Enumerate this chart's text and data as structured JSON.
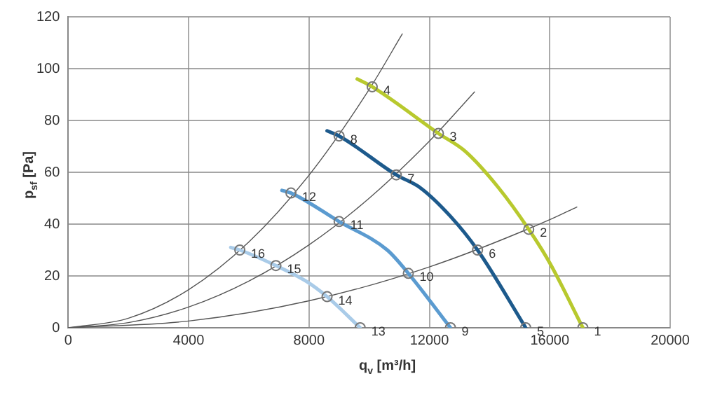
{
  "chart_data": {
    "type": "line",
    "xlabel": "q$_{v}$ [m³/h]",
    "ylabel": "p$_{sf}$ [Pa]",
    "xlim": [
      0,
      20000
    ],
    "xticks": [
      0,
      4000,
      8000,
      12000,
      16000,
      20000
    ],
    "ylim": [
      0,
      120
    ],
    "yticks": [
      0,
      20,
      40,
      60,
      80,
      100,
      120
    ],
    "grid": true,
    "legend": false,
    "marker": "none",
    "line_style": "solid",
    "series": [
      {
        "color": "#555555",
        "x": [
          0,
          2000,
          4000,
          6000,
          8000,
          10000,
          11100
        ],
        "values": [
          0,
          3.7,
          14.7,
          33.1,
          58.9,
          92,
          113.4
        ]
      },
      {
        "color": "#555555",
        "x": [
          0,
          2000,
          4000,
          6000,
          8000,
          10000,
          12000,
          13500
        ],
        "values": [
          0,
          2,
          8,
          18,
          32,
          50,
          72,
          91
        ]
      },
      {
        "color": "#555555",
        "x": [
          0,
          4000,
          8000,
          12000,
          16000,
          16900
        ],
        "values": [
          0,
          2.6,
          10.4,
          23.5,
          41.7,
          46.6
        ]
      },
      {
        "color": "#b8c92e",
        "x": [
          9600,
          10100,
          12300,
          13200,
          14300,
          15300,
          16000,
          17100
        ],
        "values": [
          96,
          93,
          75,
          68,
          54,
          38,
          25,
          0
        ]
      },
      {
        "color": "#1d5a8c",
        "x": [
          8600,
          9000,
          10900,
          11700,
          12700,
          13600,
          15200
        ],
        "values": [
          76,
          74,
          59,
          54,
          43,
          30,
          0
        ]
      },
      {
        "color": "#5b9bd0",
        "x": [
          7100,
          7400,
          9000,
          10600,
          11300,
          12700
        ],
        "values": [
          53,
          52,
          41,
          30,
          21,
          0
        ]
      },
      {
        "color": "#a9cbe8",
        "x": [
          5400,
          5700,
          6900,
          7900,
          8600,
          9700
        ],
        "values": [
          31,
          30,
          24,
          18,
          12,
          0
        ]
      },
      {
        "type": "scatter",
        "marker": "circle",
        "color": "#777777",
        "x": [
          17100,
          15300,
          12300,
          10100,
          15200,
          13600,
          10900,
          9000,
          12700,
          11300,
          9000,
          7400,
          9700,
          8600,
          6900,
          5700
        ],
        "values": [
          0,
          38,
          75,
          93,
          0,
          30,
          59,
          74,
          0,
          21,
          41,
          52,
          0,
          12,
          24,
          30
        ]
      }
    ],
    "annotations": [
      {
        "text": "1",
        "x": 17100,
        "y": 0
      },
      {
        "text": "2",
        "x": 15300,
        "y": 38
      },
      {
        "text": "3",
        "x": 12300,
        "y": 75
      },
      {
        "text": "4",
        "x": 10100,
        "y": 93
      },
      {
        "text": "5",
        "x": 15200,
        "y": 0
      },
      {
        "text": "6",
        "x": 13600,
        "y": 30
      },
      {
        "text": "7",
        "x": 10900,
        "y": 59
      },
      {
        "text": "8",
        "x": 9000,
        "y": 74
      },
      {
        "text": "9",
        "x": 12700,
        "y": 0
      },
      {
        "text": "10",
        "x": 11300,
        "y": 21
      },
      {
        "text": "11",
        "x": 9000,
        "y": 41
      },
      {
        "text": "12",
        "x": 7400,
        "y": 52
      },
      {
        "text": "13",
        "x": 9700,
        "y": 0
      },
      {
        "text": "14",
        "x": 8600,
        "y": 12
      },
      {
        "text": "15",
        "x": 6900,
        "y": 24
      },
      {
        "text": "16",
        "x": 5700,
        "y": 30
      }
    ]
  }
}
